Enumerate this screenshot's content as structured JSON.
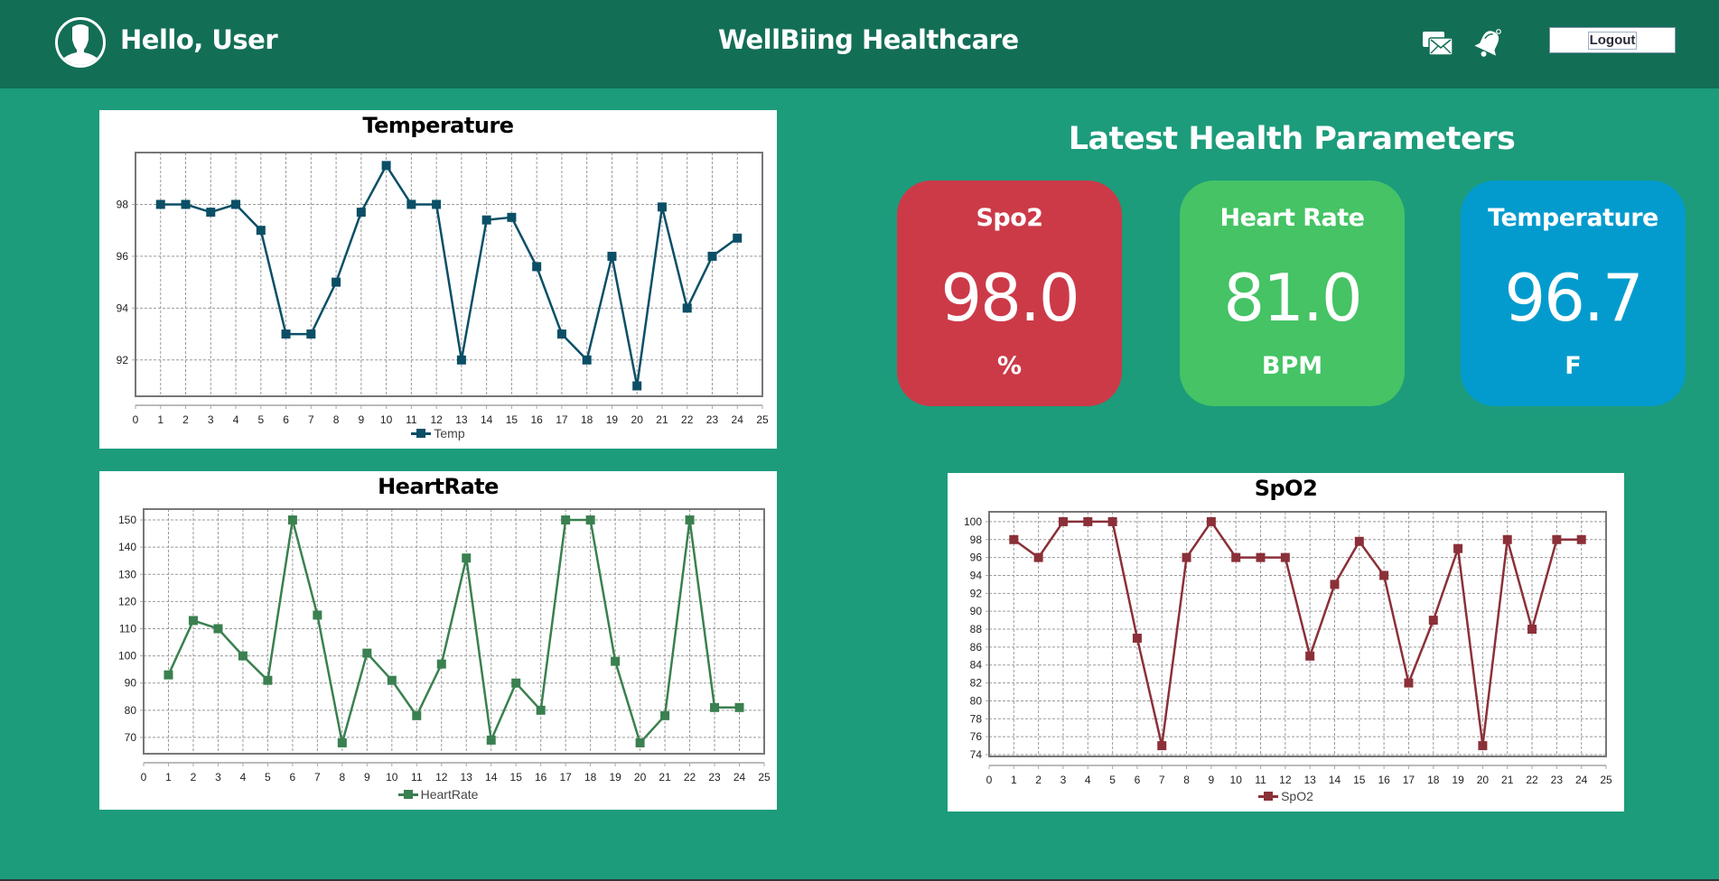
{
  "header": {
    "greeting": "Hello, User",
    "app_title": "WellBiing Healthcare",
    "logout_label": "Logout",
    "icons": [
      "user-avatar-icon",
      "messages-icon",
      "notification-bell-icon"
    ],
    "bg_color": "#136e56"
  },
  "params": {
    "title": "Latest Health Parameters",
    "cards": [
      {
        "label": "Spo2",
        "value": "98.0",
        "unit": "%",
        "color": "#cc3a48"
      },
      {
        "label": "Heart Rate",
        "value": "81.0",
        "unit": "BPM",
        "color": "#45c365"
      },
      {
        "label": "Temperature",
        "value": "96.7",
        "unit": "F",
        "color": "#039bce"
      }
    ]
  },
  "charts": {
    "temperature": {
      "title": "Temperature",
      "legend": "Temp",
      "color": "#0b4f66"
    },
    "heartrate": {
      "title": "HeartRate",
      "legend": "HeartRate",
      "color": "#3a8050"
    },
    "spo2": {
      "title": "SpO2",
      "legend": "SpO2",
      "color": "#8b3038"
    }
  },
  "chart_data": [
    {
      "type": "line",
      "title": "Temperature",
      "xlabel": "",
      "ylabel": "",
      "x": [
        1,
        2,
        3,
        4,
        5,
        6,
        7,
        8,
        9,
        10,
        11,
        12,
        13,
        14,
        15,
        16,
        17,
        18,
        19,
        20,
        21,
        22,
        23,
        24
      ],
      "series": [
        {
          "name": "Temp",
          "values": [
            98,
            98,
            97.7,
            98,
            97,
            93,
            93,
            95,
            97.7,
            99.5,
            98,
            98,
            92,
            97.4,
            97.5,
            95.6,
            93,
            92,
            96,
            91,
            97.9,
            94,
            96,
            96.7
          ]
        }
      ],
      "xlim": [
        0,
        25
      ],
      "xticks": [
        0,
        1,
        2,
        3,
        4,
        5,
        6,
        7,
        8,
        9,
        10,
        11,
        12,
        13,
        14,
        15,
        16,
        17,
        18,
        19,
        20,
        21,
        22,
        23,
        24,
        25
      ],
      "ylim": [
        90.6,
        100
      ],
      "yticks": [
        92,
        94,
        96,
        98
      ],
      "grid": true,
      "legend_position": "bottom"
    },
    {
      "type": "line",
      "title": "HeartRate",
      "xlabel": "",
      "ylabel": "",
      "x": [
        1,
        2,
        3,
        4,
        5,
        6,
        7,
        8,
        9,
        10,
        11,
        12,
        13,
        14,
        15,
        16,
        17,
        18,
        19,
        20,
        21,
        22,
        23,
        24
      ],
      "series": [
        {
          "name": "HeartRate",
          "values": [
            93,
            113,
            110,
            100,
            91,
            150,
            115,
            68,
            101,
            91,
            78,
            97,
            136,
            69,
            90,
            80,
            150,
            150,
            98,
            68,
            78,
            150,
            81,
            81
          ]
        }
      ],
      "xlim": [
        0,
        25
      ],
      "xticks": [
        0,
        1,
        2,
        3,
        4,
        5,
        6,
        7,
        8,
        9,
        10,
        11,
        12,
        13,
        14,
        15,
        16,
        17,
        18,
        19,
        20,
        21,
        22,
        23,
        24,
        25
      ],
      "ylim": [
        64,
        154
      ],
      "yticks": [
        70,
        80,
        90,
        100,
        110,
        120,
        130,
        140,
        150
      ],
      "grid": true,
      "legend_position": "bottom"
    },
    {
      "type": "line",
      "title": "SpO2",
      "xlabel": "",
      "ylabel": "",
      "x": [
        1,
        2,
        3,
        4,
        5,
        6,
        7,
        8,
        9,
        10,
        11,
        12,
        13,
        14,
        15,
        16,
        17,
        18,
        19,
        20,
        21,
        22,
        23,
        24
      ],
      "series": [
        {
          "name": "SpO2",
          "values": [
            98,
            96,
            100,
            100,
            100,
            87,
            75,
            96,
            100,
            96,
            96,
            96,
            85,
            93,
            97.8,
            94,
            82,
            89,
            97,
            75,
            98,
            88,
            98,
            98
          ]
        }
      ],
      "xlim": [
        0,
        25
      ],
      "xticks": [
        0,
        1,
        2,
        3,
        4,
        5,
        6,
        7,
        8,
        9,
        10,
        11,
        12,
        13,
        14,
        15,
        16,
        17,
        18,
        19,
        20,
        21,
        22,
        23,
        24,
        25
      ],
      "ylim": [
        73.8,
        101.1
      ],
      "yticks": [
        74,
        76,
        78,
        80,
        82,
        84,
        86,
        88,
        90,
        92,
        94,
        96,
        98,
        100
      ],
      "grid": true,
      "legend_position": "bottom"
    }
  ]
}
